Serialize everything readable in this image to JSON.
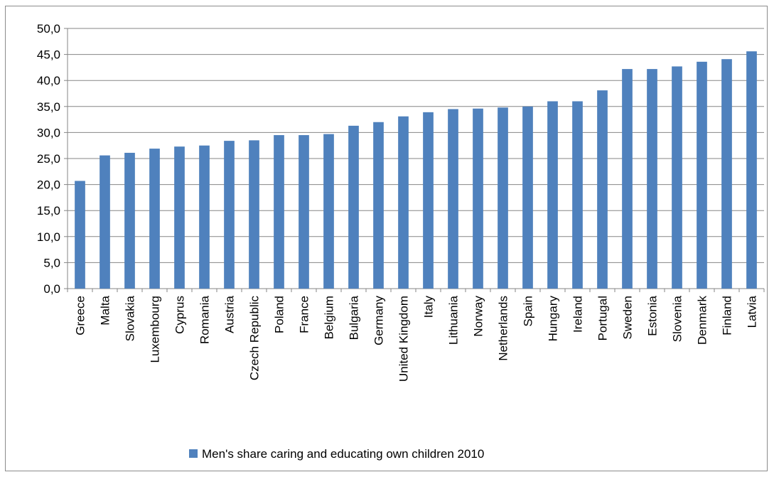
{
  "chart_data": {
    "type": "bar",
    "categories": [
      "Greece",
      "Malta",
      "Slovakia",
      "Luxembourg",
      "Cyprus",
      "Romania",
      "Austria",
      "Czech Republic",
      "Poland",
      "France",
      "Belgium",
      "Bulgaria",
      "Germany",
      "United Kingdom",
      "Italy",
      "Lithuania",
      "Norway",
      "Netherlands",
      "Spain",
      "Hungary",
      "Ireland",
      "Portugal",
      "Sweden",
      "Estonia",
      "Slovenia",
      "Denmark",
      "Finland",
      "Latvia"
    ],
    "series": [
      {
        "name": "Men's share caring and educating own children 2010",
        "values": [
          20.7,
          25.6,
          26.1,
          26.9,
          27.3,
          27.5,
          28.4,
          28.5,
          29.5,
          29.5,
          29.7,
          31.3,
          32.0,
          33.1,
          33.9,
          34.5,
          34.6,
          34.8,
          35.0,
          36.0,
          36.0,
          38.1,
          42.2,
          42.2,
          42.7,
          43.6,
          44.1,
          45.6
        ],
        "color": "#4f81bd"
      }
    ],
    "ylim": [
      0,
      50
    ],
    "yticks": [
      "0,0",
      "5,0",
      "10,0",
      "15,0",
      "20,0",
      "25,0",
      "30,0",
      "35,0",
      "40,0",
      "45,0",
      "50,0"
    ],
    "grid": true,
    "legend_position": "bottom",
    "title": "",
    "xlabel": "",
    "ylabel": ""
  }
}
